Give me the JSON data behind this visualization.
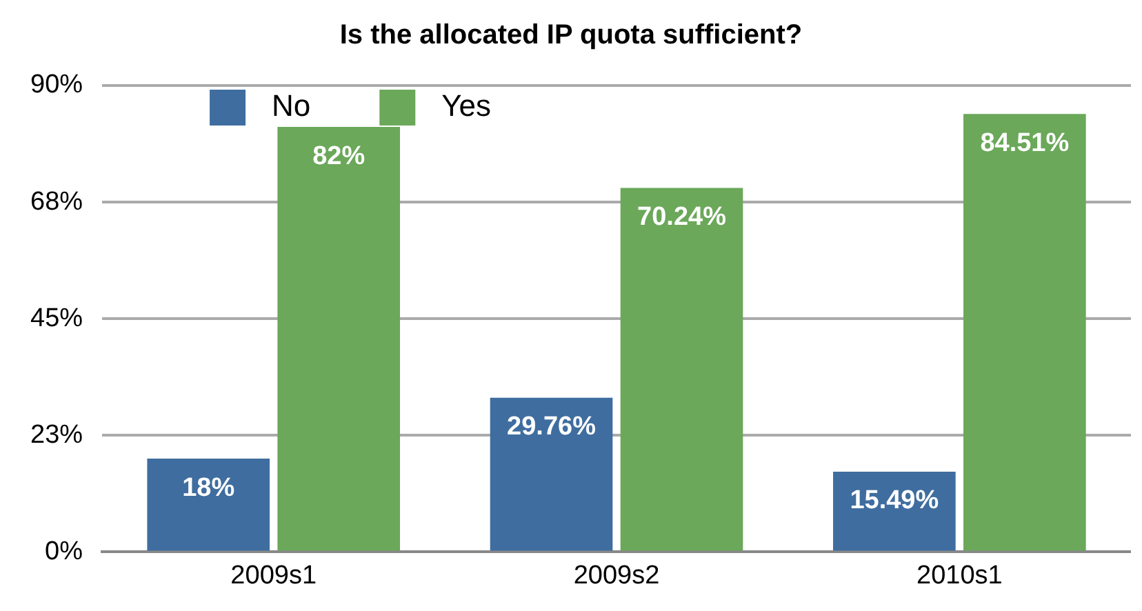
{
  "chart_data": {
    "type": "bar",
    "title": "Is the allocated IP quota sufficient?",
    "categories": [
      "2009s1",
      "2009s2",
      "2010s1"
    ],
    "series": [
      {
        "name": "No",
        "color": "#3f6d9f",
        "values": [
          18,
          29.76,
          15.49
        ],
        "value_labels": [
          "18%",
          "29.76%",
          "15.49%"
        ]
      },
      {
        "name": "Yes",
        "color": "#6ba85a",
        "values": [
          82,
          70.24,
          84.51
        ],
        "value_labels": [
          "82%",
          "70.24%",
          "84.51%"
        ]
      }
    ],
    "ylim": [
      0,
      90
    ],
    "yticks": [
      {
        "value": 0,
        "label": "0%"
      },
      {
        "value": 22.5,
        "label": "23%"
      },
      {
        "value": 45,
        "label": "45%"
      },
      {
        "value": 67.5,
        "label": "68%"
      },
      {
        "value": 90,
        "label": "90%"
      }
    ],
    "grid": "y",
    "legend": "top left"
  }
}
